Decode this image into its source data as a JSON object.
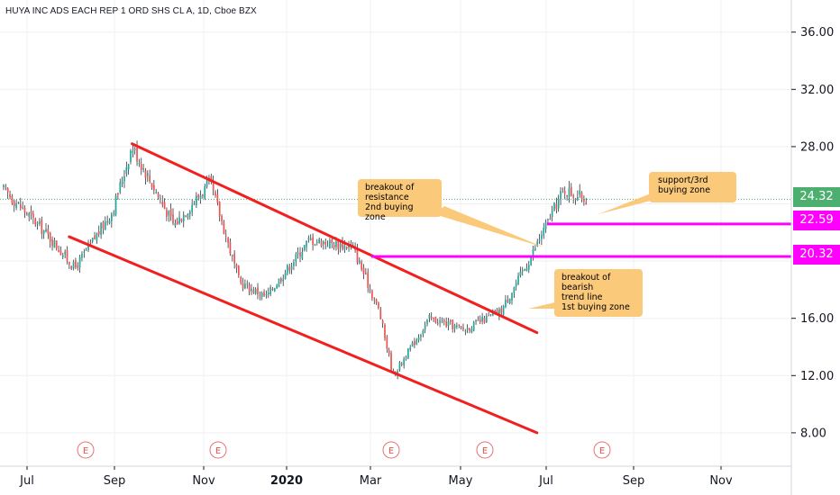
{
  "window": {
    "title": "HUYA INC ADS EACH REP 1 ORD SHS CL A, 1D, Cboe BZX"
  },
  "colors": {
    "up": "#26a69a",
    "down": "#ef5350",
    "candle_wick": "#131722",
    "channel": "#f21f1f",
    "level": "#ff00ff",
    "note_bg": "#fbc97a",
    "last_price_bg": "#4caf70",
    "grid": "#eef0f3"
  },
  "chart_data": {
    "type": "candlestick",
    "title": "HUYA INC ADS EACH REP 1 ORD SHS CL A, 1D, Cboe BZX",
    "x_ticks": [
      "Jul",
      "Sep",
      "Nov",
      "2020",
      "Mar",
      "May",
      "Jul",
      "Sep",
      "Nov"
    ],
    "y_ticks": [
      "36.00",
      "32.00",
      "28.00",
      "16.00",
      "12.00",
      "8.00"
    ],
    "ylim": [
      5.5,
      38.5
    ],
    "grid": true,
    "earnings_marker": "E",
    "earnings_months": [
      "Aug 2019",
      "Nov 2019",
      "Mar 2020",
      "May 2020",
      "Aug 2020"
    ],
    "price_series_approx": [
      {
        "date": "2019-06-15",
        "close": 25.0
      },
      {
        "date": "2019-07-15",
        "close": 22.0
      },
      {
        "date": "2019-08-05",
        "close": 19.5
      },
      {
        "date": "2019-09-01",
        "close": 23.5
      },
      {
        "date": "2019-09-15",
        "close": 28.0
      },
      {
        "date": "2019-10-15",
        "close": 22.5
      },
      {
        "date": "2019-11-10",
        "close": 25.5
      },
      {
        "date": "2019-12-01",
        "close": 18.5
      },
      {
        "date": "2019-12-20",
        "close": 17.5
      },
      {
        "date": "2020-01-20",
        "close": 21.5
      },
      {
        "date": "2020-02-20",
        "close": 21.0
      },
      {
        "date": "2020-03-10",
        "close": 16.5
      },
      {
        "date": "2020-03-20",
        "close": 12.0
      },
      {
        "date": "2020-04-15",
        "close": 16.0
      },
      {
        "date": "2020-05-10",
        "close": 15.2
      },
      {
        "date": "2020-06-05",
        "close": 16.5
      },
      {
        "date": "2020-06-25",
        "close": 20.0
      },
      {
        "date": "2020-07-05",
        "close": 22.0
      },
      {
        "date": "2020-07-20",
        "close": 25.0
      },
      {
        "date": "2020-08-05",
        "close": 24.32
      }
    ],
    "channel_lines": [
      {
        "from": {
          "date": "2019-09-15",
          "price": 28.2
        },
        "to": {
          "date": "2020-07-01",
          "price": 15.0
        }
      },
      {
        "from": {
          "date": "2019-08-01",
          "price": 21.7
        },
        "to": {
          "date": "2020-07-01",
          "price": 8.0
        }
      }
    ],
    "horizontal_levels": [
      {
        "price": 20.32,
        "label": "20.32"
      },
      {
        "price": 22.59,
        "label": "22.59"
      }
    ],
    "last_price": {
      "value": 24.32,
      "label": "24.32"
    },
    "annotations": [
      {
        "text": [
          "breakout of",
          "resistance",
          "2nd buying zone"
        ]
      },
      {
        "text": [
          "breakout of",
          "bearish",
          "trend line",
          "1st buying zone"
        ]
      },
      {
        "text": [
          "support/3rd",
          "buying zone"
        ]
      }
    ]
  }
}
